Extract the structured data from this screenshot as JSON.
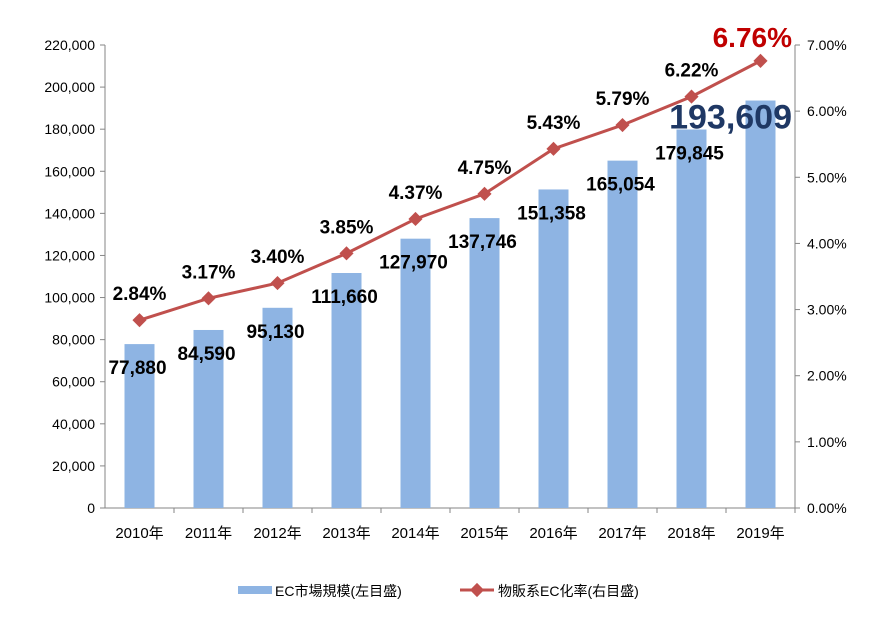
{
  "chart_data": {
    "type": "bar+line",
    "categories": [
      "2010年",
      "2011年",
      "2012年",
      "2013年",
      "2014年",
      "2015年",
      "2016年",
      "2017年",
      "2018年",
      "2019年"
    ],
    "series": [
      {
        "name": "EC市場規模(左目盛)",
        "type": "bar",
        "axis": "left",
        "color": "#8EB4E3",
        "values": [
          77880,
          84590,
          95130,
          111660,
          127970,
          137746,
          151358,
          165054,
          179845,
          193609
        ],
        "labels": [
          "77,880",
          "84,590",
          "95,130",
          "111,660",
          "127,970",
          "137,746",
          "151,358",
          "165,054",
          "179,845",
          "193,609"
        ]
      },
      {
        "name": "物販系EC化率(右目盛)",
        "type": "line",
        "axis": "right",
        "color": "#C0504D",
        "values": [
          2.84,
          3.17,
          3.4,
          3.85,
          4.37,
          4.75,
          5.43,
          5.79,
          6.22,
          6.76
        ],
        "labels": [
          "2.84%",
          "3.17%",
          "3.40%",
          "3.85%",
          "4.37%",
          "4.75%",
          "5.43%",
          "5.79%",
          "6.22%",
          "6.76%"
        ]
      }
    ],
    "y_left": {
      "range": [
        0,
        220000
      ],
      "ticks": [
        "0",
        "20,000",
        "40,000",
        "60,000",
        "80,000",
        "100,000",
        "120,000",
        "140,000",
        "160,000",
        "180,000",
        "200,000",
        "220,000"
      ]
    },
    "y_right": {
      "range": [
        0,
        7
      ],
      "ticks": [
        "0.00%",
        "1.00%",
        "2.00%",
        "3.00%",
        "4.00%",
        "5.00%",
        "6.00%",
        "7.00%"
      ]
    },
    "highlight_colors": {
      "last_bar_label": "#1F3864",
      "last_line_label": "#C00000"
    },
    "grid": false,
    "legend": "bottom"
  }
}
